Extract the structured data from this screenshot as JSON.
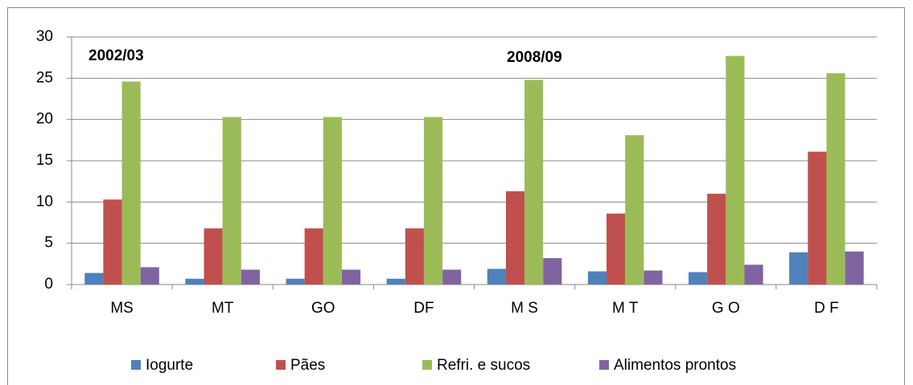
{
  "chart_data": {
    "type": "bar",
    "annotations": [
      "2002/03",
      "2008/09"
    ],
    "categories": [
      "MS",
      "MT",
      "GO",
      "DF",
      "M S",
      "M T",
      "G O",
      "D F"
    ],
    "series": [
      {
        "name": "Iogurte",
        "color": "#4f81bd",
        "values": [
          1.4,
          0.7,
          0.7,
          0.7,
          1.9,
          1.6,
          1.5,
          3.9
        ]
      },
      {
        "name": "Pães",
        "color": "#c0504d",
        "values": [
          10.3,
          6.8,
          6.8,
          6.8,
          11.3,
          8.6,
          11.0,
          16.1
        ]
      },
      {
        "name": "Refri. e sucos",
        "color": "#9bbb59",
        "values": [
          24.6,
          20.3,
          20.3,
          20.3,
          24.8,
          18.1,
          27.7,
          25.6
        ]
      },
      {
        "name": "Alimentos prontos",
        "color": "#8064a2",
        "values": [
          2.1,
          1.8,
          1.8,
          1.8,
          3.2,
          1.7,
          2.4,
          4.0
        ]
      }
    ],
    "ylim": [
      0,
      30
    ],
    "yticks": [
      0,
      5,
      10,
      15,
      20,
      25,
      30
    ],
    "grid": true,
    "legend": "bottom"
  }
}
